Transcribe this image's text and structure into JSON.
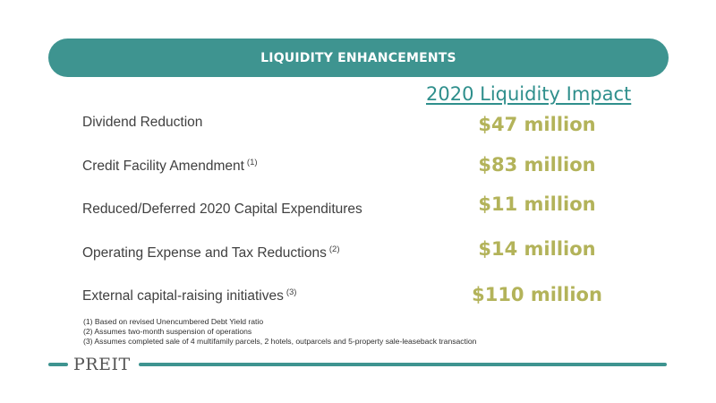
{
  "banner": {
    "title": "LIQUIDITY ENHANCEMENTS"
  },
  "impact_heading": "2020 Liquidity Impact",
  "rows": [
    {
      "label": "Dividend Reduction",
      "note": "",
      "value": "$47 million"
    },
    {
      "label": "Credit Facility Amendment",
      "note": "(1)",
      "value": "$83 million"
    },
    {
      "label": "Reduced/Deferred 2020 Capital Expenditures",
      "note": "",
      "value": "$11 million"
    },
    {
      "label": "Operating Expense and Tax Reductions",
      "note": "(2)",
      "value": "$14 million"
    },
    {
      "label": "External capital-raising initiatives",
      "note": "(3)",
      "value": "$110 million"
    }
  ],
  "footnotes": [
    "(1) Based on revised Unencumbered Debt Yield ratio",
    "(2) Assumes two-month suspension of operations",
    "(3) Assumes completed sale of 4 multifamily parcels, 2 hotels, outparcels and 5-property sale-leaseback transaction"
  ],
  "footer": {
    "logo_text": "PREIT",
    "brand_color": "#3e9490",
    "value_color": "#b3b35a"
  }
}
